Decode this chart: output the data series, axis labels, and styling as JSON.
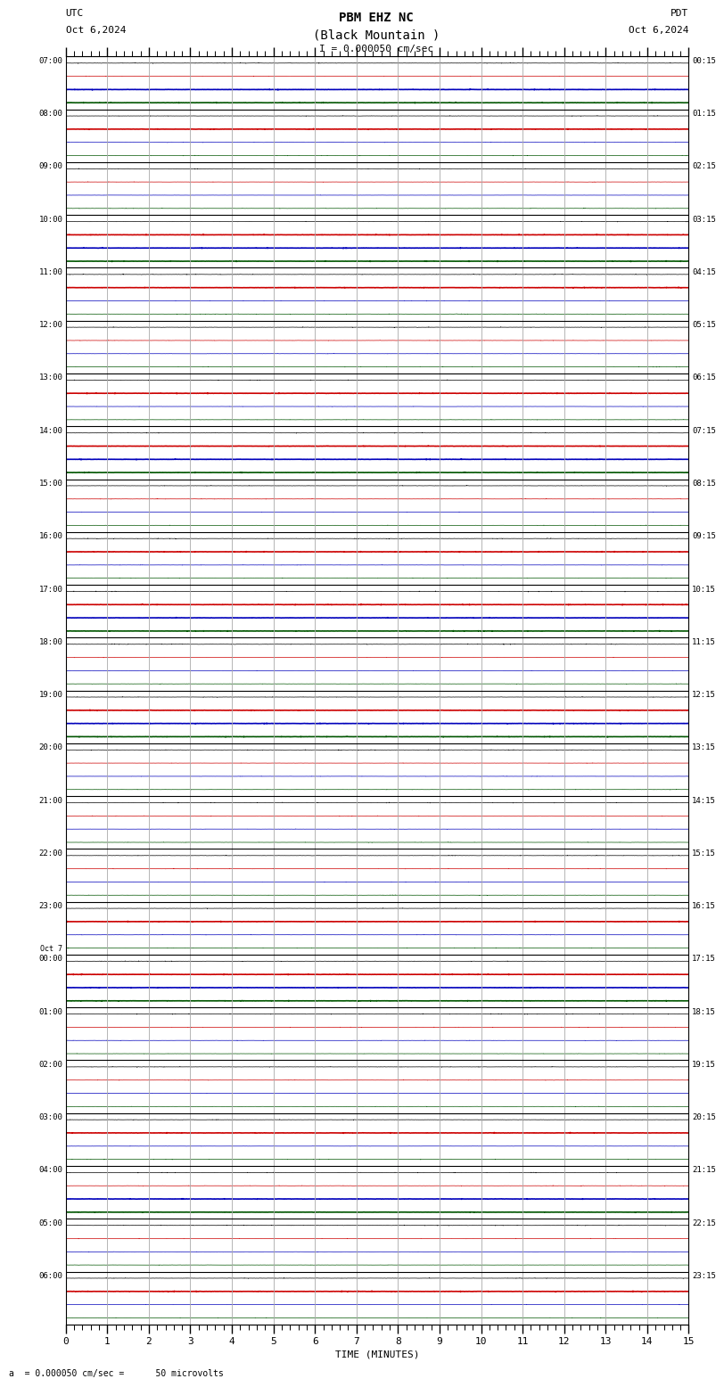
{
  "title_line1": "PBM EHZ NC",
  "title_line2": "(Black Mountain )",
  "scale_label": "I = 0.000050 cm/sec",
  "left_date_label_1": "UTC",
  "left_date_label_2": "Oct 6,2024",
  "right_date_label_1": "PDT",
  "right_date_label_2": "Oct 6,2024",
  "xlabel": "TIME (MINUTES)",
  "bottom_note": "= 0.000050 cm/sec =      50 microvolts",
  "left_labels": [
    "07:00",
    "08:00",
    "09:00",
    "10:00",
    "11:00",
    "12:00",
    "13:00",
    "14:00",
    "15:00",
    "16:00",
    "17:00",
    "18:00",
    "19:00",
    "20:00",
    "21:00",
    "22:00",
    "23:00",
    "Oct 7\n00:00",
    "01:00",
    "02:00",
    "03:00",
    "04:00",
    "05:00",
    "06:00"
  ],
  "right_labels": [
    "00:15",
    "01:15",
    "02:15",
    "03:15",
    "04:15",
    "05:15",
    "06:15",
    "07:15",
    "08:15",
    "09:15",
    "10:15",
    "11:15",
    "12:15",
    "13:15",
    "14:15",
    "15:15",
    "16:15",
    "17:15",
    "18:15",
    "19:15",
    "20:15",
    "21:15",
    "22:15",
    "23:15"
  ],
  "n_rows": 24,
  "traces_per_row": 4,
  "trace_colors": [
    "#000000",
    "#cc0000",
    "#0000bb",
    "#005500"
  ],
  "x_min": 0,
  "x_max": 15,
  "x_ticks": [
    0,
    1,
    2,
    3,
    4,
    5,
    6,
    7,
    8,
    9,
    10,
    11,
    12,
    13,
    14,
    15
  ],
  "bg_color": "#ffffff",
  "grid_color": "#aaaaaa",
  "noise_amplitude": 0.01,
  "bold_rows_info": {
    "comment": "0-indexed hour rows with bold/thick signals for each color channel",
    "bold_black": [],
    "bold_red": [
      1,
      3,
      4,
      6,
      7,
      9,
      10,
      12,
      16,
      17,
      20,
      23
    ],
    "bold_blue": [
      0,
      3,
      7,
      10,
      12,
      17,
      21
    ],
    "bold_green": [
      0,
      3,
      7,
      10,
      12,
      17,
      21
    ]
  }
}
